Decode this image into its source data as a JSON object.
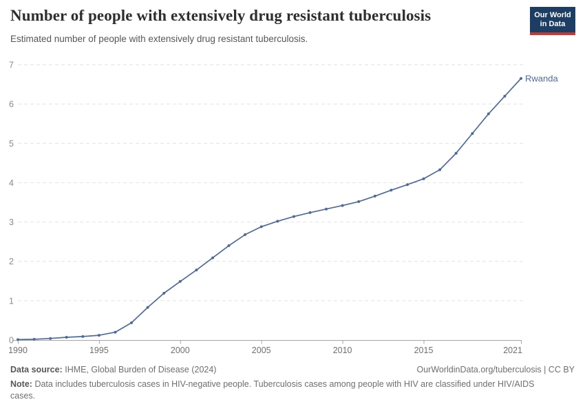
{
  "header": {
    "title": "Number of people with extensively drug resistant tuberculosis",
    "subtitle": "Estimated number of people with extensively drug resistant tuberculosis.",
    "logo": {
      "line1": "Our World",
      "line2": "in Data"
    }
  },
  "colors": {
    "series": "#4C6A9C",
    "logo_bg": "#1D3D63",
    "logo_bar": "#C7392F",
    "grid": "#E2E2E2",
    "axis": "#A5A5A5",
    "axis_label": "#8A8A8A",
    "tick_label": "#6F6F6F"
  },
  "chart_data": {
    "type": "line",
    "title": "Number of people with extensively drug resistant tuberculosis",
    "xlabel": "",
    "ylabel": "",
    "x": [
      1990,
      1991,
      1992,
      1993,
      1994,
      1995,
      1996,
      1997,
      1998,
      1999,
      2000,
      2001,
      2002,
      2003,
      2004,
      2005,
      2006,
      2007,
      2008,
      2009,
      2010,
      2011,
      2012,
      2013,
      2014,
      2015,
      2016,
      2017,
      2018,
      2019,
      2020,
      2021
    ],
    "series": [
      {
        "name": "Rwanda",
        "color": "#4C6A9C",
        "values": [
          0.01,
          0.02,
          0.04,
          0.07,
          0.09,
          0.12,
          0.2,
          0.44,
          0.83,
          1.19,
          1.49,
          1.78,
          2.09,
          2.4,
          2.68,
          2.88,
          3.02,
          3.14,
          3.24,
          3.33,
          3.42,
          3.52,
          3.66,
          3.81,
          3.95,
          4.1,
          4.33,
          4.75,
          5.25,
          5.75,
          6.2,
          6.65
        ]
      }
    ],
    "x_ticks": [
      1990,
      1995,
      2000,
      2005,
      2010,
      2015,
      2021
    ],
    "y_ticks": [
      0,
      1,
      2,
      3,
      4,
      5,
      6,
      7
    ],
    "xlim": [
      1990,
      2021
    ],
    "ylim": [
      0,
      7
    ],
    "grid": "horizontal-dashed",
    "legend": "end-of-line-label"
  },
  "footer": {
    "source_label": "Data source:",
    "source_value": "IHME, Global Burden of Disease (2024)",
    "citation": "OurWorldinData.org/tuberculosis | CC BY",
    "note_label": "Note:",
    "note_value": "Data includes tuberculosis cases in HIV-negative people. Tuberculosis cases among people with HIV are classified under HIV/AIDS cases."
  }
}
